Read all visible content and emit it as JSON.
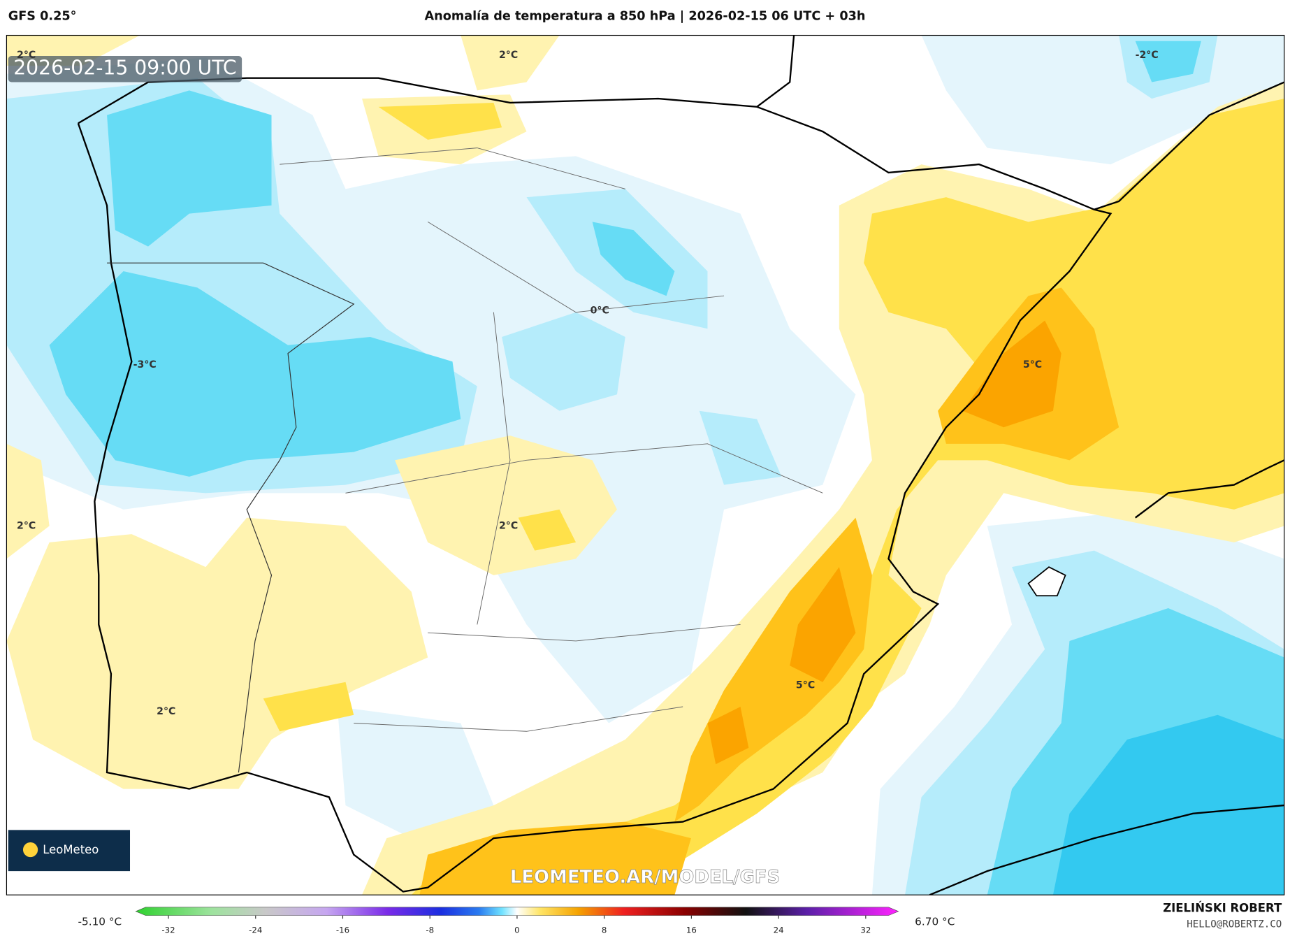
{
  "header": {
    "model": "GFS 0.25°",
    "title": "Anomalía de temperatura a 850 hPa | 2026-02-15 06 UTC + 03h"
  },
  "map": {
    "timestamp": "2026-02-15 09:00 UTC",
    "watermark": "LEOMETEO.AR/MODEL/GFS",
    "logo": "LeoMeteo",
    "contour_labels": [
      "2°C",
      "2°C",
      "-2°C",
      "0°C",
      "-3°C",
      "5°C",
      "2°C",
      "2°C",
      "5°C",
      "2°C"
    ]
  },
  "colorbar": {
    "min_label": "-5.10 °C",
    "max_label": "6.70 °C",
    "lim": [
      -35,
      35
    ],
    "ticks": [
      -32,
      -24,
      -16,
      -8,
      0,
      8,
      16,
      24,
      32
    ]
  },
  "credits": {
    "author": "ZIELIŃSKI ROBERT",
    "email": "HELLO@ROBERTZ.CO"
  }
}
